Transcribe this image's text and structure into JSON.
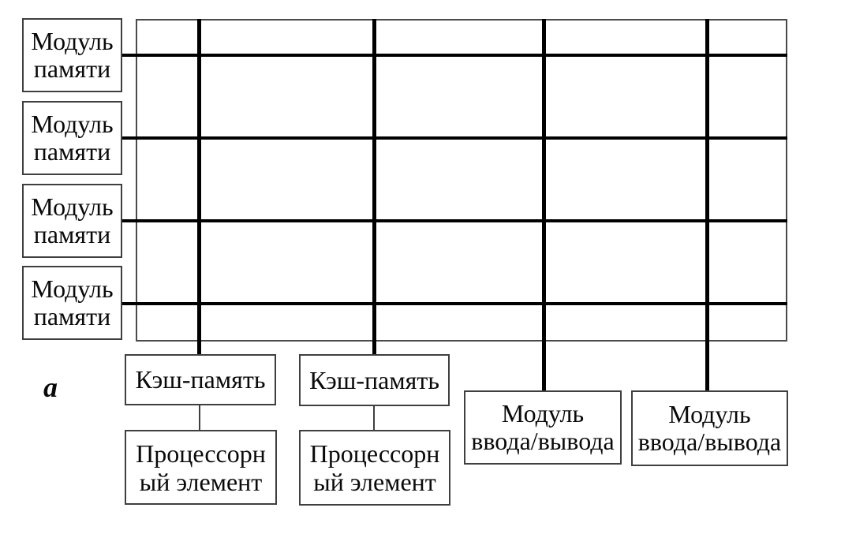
{
  "figure": {
    "label": "а",
    "colors": {
      "background": "#ffffff",
      "bus_line": "#000000",
      "box_border": "#3f3f3f",
      "text": "#0a0a0a"
    }
  },
  "memory_modules": [
    {
      "line1": "Модуль",
      "line2": "памяти"
    },
    {
      "line1": "Модуль",
      "line2": "памяти"
    },
    {
      "line1": "Модуль",
      "line2": "памяти"
    },
    {
      "line1": "Модуль",
      "line2": "памяти"
    }
  ],
  "caches": [
    {
      "label": "Кэш-память"
    },
    {
      "label": "Кэш-память"
    }
  ],
  "processors": [
    {
      "line1": "Процессорн",
      "line2": "ый элемент"
    },
    {
      "line1": "Процессорн",
      "line2": "ый элемент"
    }
  ],
  "io_modules": [
    {
      "line1": "Модуль",
      "line2": "ввода/вывода"
    },
    {
      "line1": "Модуль",
      "line2": "ввода/вывода"
    }
  ]
}
